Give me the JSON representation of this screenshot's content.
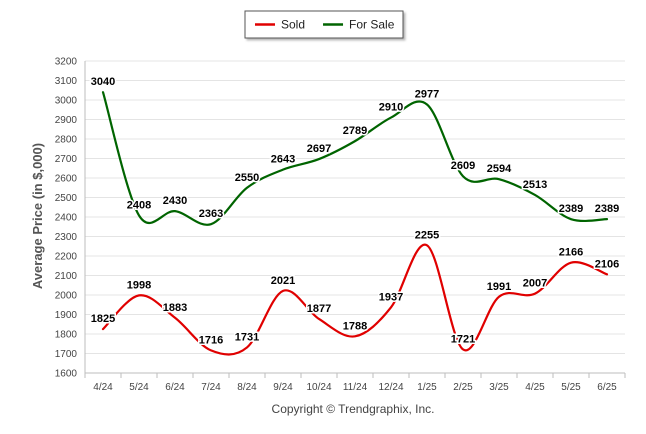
{
  "chart_data": {
    "type": "line",
    "categories": [
      "4/24",
      "5/24",
      "6/24",
      "7/24",
      "8/24",
      "9/24",
      "10/24",
      "11/24",
      "12/24",
      "1/25",
      "2/25",
      "3/25",
      "4/25",
      "5/25",
      "6/25"
    ],
    "series": [
      {
        "name": "Sold",
        "color": "#e00000",
        "values": [
          1825,
          1998,
          1883,
          1716,
          1731,
          2021,
          1877,
          1788,
          1937,
          2255,
          1721,
          1991,
          2007,
          2166,
          2106
        ]
      },
      {
        "name": "For Sale",
        "color": "#006400",
        "values": [
          3040,
          2408,
          2430,
          2363,
          2550,
          2643,
          2697,
          2789,
          2910,
          2977,
          2609,
          2594,
          2513,
          2389,
          2389
        ]
      }
    ],
    "ylabel": "Average Price (in $,000)",
    "xlabel": "",
    "ylim": [
      1600,
      3200
    ],
    "yticks": [
      1600,
      1700,
      1800,
      1900,
      2000,
      2100,
      2200,
      2300,
      2400,
      2500,
      2600,
      2700,
      2800,
      2900,
      3000,
      3100,
      3200
    ],
    "grid": true,
    "legend": "top-center"
  },
  "footer": {
    "copyright": "Copyright © Trendgraphix, Inc."
  }
}
